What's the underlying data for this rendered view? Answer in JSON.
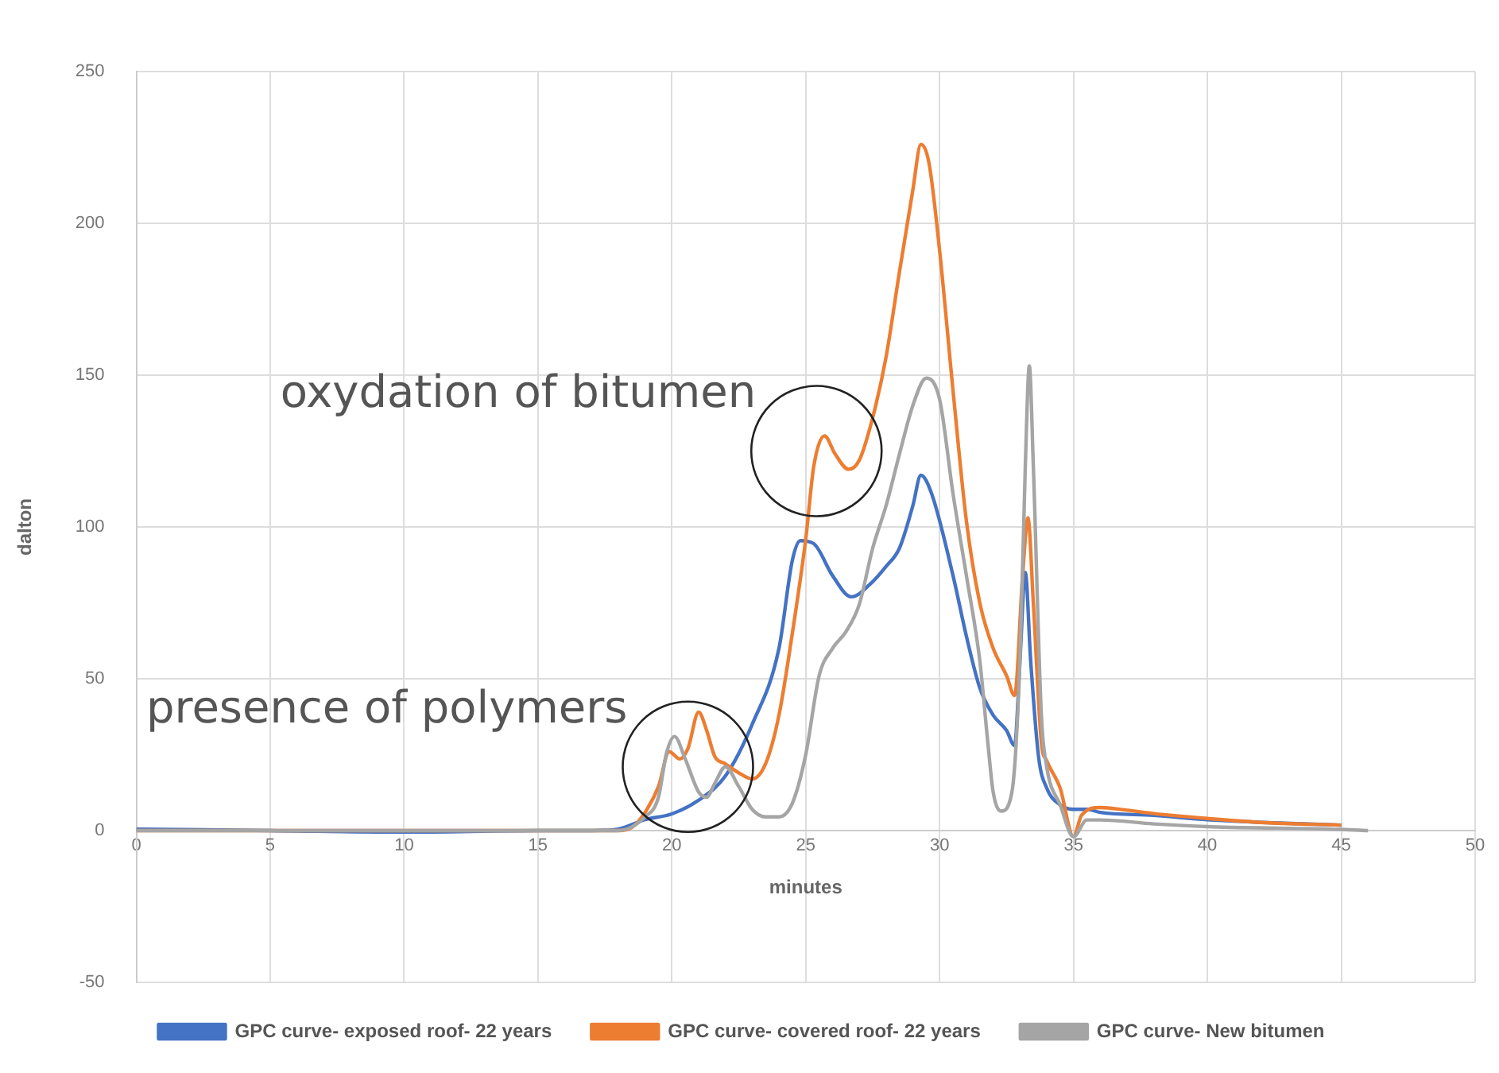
{
  "chart_data": {
    "type": "line",
    "xlabel": "minutes",
    "ylabel": "dalton",
    "xlim": [
      0,
      50
    ],
    "xticks": [
      0,
      5,
      10,
      15,
      20,
      25,
      30,
      35,
      40,
      45,
      50
    ],
    "ylim": [
      -50,
      250
    ],
    "yticks": [
      -50,
      0,
      50,
      100,
      150,
      200,
      250
    ],
    "grid": true,
    "legend": "bottom",
    "marker": "none",
    "line_style": "solid",
    "annotations": [
      {
        "text": "oxydation of bitumen",
        "x": 25.4,
        "y": 125
      },
      {
        "text": "presence of polymers",
        "x": 20.6,
        "y": 21
      }
    ],
    "series": [
      {
        "name": "GPC curve- exposed roof- 22 years",
        "color": "#4472c4",
        "x": [
          0,
          5,
          10,
          15,
          17,
          18,
          19,
          20,
          21,
          22,
          23,
          24,
          24.5,
          24.8,
          25.3,
          26,
          26.7,
          27.5,
          28,
          28.5,
          29,
          29.3,
          29.7,
          30.5,
          31,
          31.5,
          32,
          32.5,
          32.8,
          33,
          33.2,
          33.4,
          33.7,
          34,
          34.5,
          35,
          35.5,
          36,
          38,
          40,
          42,
          45
        ],
        "values": [
          0.5,
          0,
          -0.5,
          0,
          0,
          0.5,
          3.6,
          5.5,
          10,
          18,
          35,
          60,
          89,
          95.5,
          94.5,
          84,
          77,
          82,
          87,
          93,
          107,
          117,
          111,
          84,
          64,
          47,
          38,
          33,
          28,
          56,
          85,
          56,
          24,
          14,
          8.5,
          7,
          7,
          6,
          5,
          3.6,
          2.7,
          1.8
        ]
      },
      {
        "name": "GPC curve- covered roof- 22 years",
        "color": "#ed7d31",
        "x": [
          0,
          15,
          18,
          18.5,
          19,
          19.5,
          19.9,
          20.3,
          20.6,
          21,
          21.3,
          21.6,
          22,
          22.5,
          23,
          23.5,
          24,
          24.5,
          25,
          25.3,
          25.7,
          26.1,
          26.6,
          27,
          27.5,
          28,
          28.5,
          29,
          29.3,
          29.6,
          30,
          30.5,
          31,
          31.5,
          32,
          32.5,
          32.8,
          33.1,
          33.3,
          33.5,
          33.8,
          34,
          34.5,
          35,
          35.3,
          36,
          37,
          38,
          40,
          42,
          45
        ],
        "values": [
          0,
          0,
          0,
          1,
          6,
          14.5,
          26,
          23.6,
          27,
          39,
          33,
          24.5,
          22,
          19,
          17,
          22,
          38,
          65,
          96,
          120,
          130,
          124,
          119,
          122,
          136,
          156,
          184,
          211,
          226,
          220,
          191,
          145,
          102,
          75,
          60,
          51,
          44.5,
          84,
          103,
          75,
          29,
          23,
          14,
          -2,
          5,
          7.6,
          6.7,
          5.6,
          4,
          2.7,
          1.8
        ]
      },
      {
        "name": "GPC curve- New bitumen",
        "color": "#a5a5a5",
        "x": [
          0,
          18,
          19,
          19.5,
          19.8,
          20.1,
          20.5,
          21,
          21.3,
          21.6,
          22,
          22.5,
          23,
          23.5,
          24,
          24.5,
          25,
          25.5,
          26,
          26.5,
          27,
          27.5,
          28,
          28.5,
          29,
          29.5,
          30,
          30.5,
          31,
          31.5,
          31.8,
          32,
          32.3,
          32.7,
          33,
          33.2,
          33.35,
          33.5,
          33.8,
          34,
          34.5,
          35,
          35.5,
          36,
          38,
          40,
          45,
          46
        ],
        "values": [
          0,
          0,
          4.5,
          11,
          25.5,
          31,
          23.6,
          12.7,
          11,
          15.5,
          21,
          14.5,
          7,
          4.5,
          4.5,
          9,
          25,
          51,
          60,
          65.5,
          74.5,
          93,
          107,
          124,
          140,
          149,
          142,
          111,
          84,
          56,
          29,
          12.7,
          6.4,
          12.7,
          56,
          120,
          153,
          120,
          38,
          21,
          8.5,
          -2,
          3.5,
          3.5,
          2.2,
          1.3,
          0.4,
          0
        ]
      }
    ]
  }
}
